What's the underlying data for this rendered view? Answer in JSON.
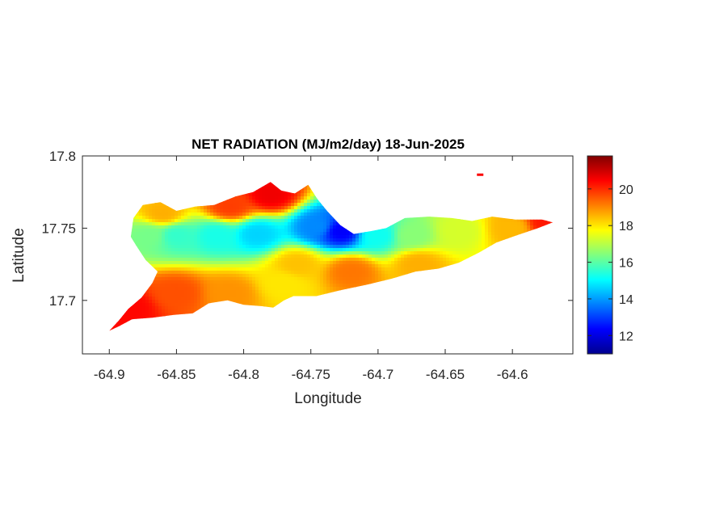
{
  "chart_data": {
    "type": "heatmap",
    "title": "NET RADIATION (MJ/m2/day) 18-Jun-2025",
    "xlabel": "Longitude",
    "ylabel": "Latitude",
    "xlim": [
      -64.92,
      -64.555
    ],
    "ylim": [
      17.663,
      17.8
    ],
    "x_ticks": [
      -64.9,
      -64.85,
      -64.8,
      -64.75,
      -64.7,
      -64.65,
      -64.6
    ],
    "x_tick_labels": [
      "-64.9",
      "-64.85",
      "-64.8",
      "-64.75",
      "-64.7",
      "-64.65",
      "-64.6"
    ],
    "y_ticks": [
      17.7,
      17.75,
      17.8
    ],
    "y_tick_labels": [
      "17.7",
      "17.75",
      "17.8"
    ],
    "colorbar": {
      "colormap": "jet",
      "clim": [
        11,
        21.8
      ],
      "ticks": [
        12,
        14,
        16,
        18,
        20
      ],
      "tick_labels": [
        "12",
        "14",
        "16",
        "18",
        "20"
      ]
    },
    "grid": false,
    "island_outline_lonlat": [
      [
        -64.9,
        17.679
      ],
      [
        -64.893,
        17.686
      ],
      [
        -64.886,
        17.694
      ],
      [
        -64.876,
        17.702
      ],
      [
        -64.868,
        17.712
      ],
      [
        -64.864,
        17.72
      ],
      [
        -64.873,
        17.728
      ],
      [
        -64.88,
        17.738
      ],
      [
        -64.884,
        17.744
      ],
      [
        -64.882,
        17.757
      ],
      [
        -64.875,
        17.766
      ],
      [
        -64.862,
        17.768
      ],
      [
        -64.85,
        17.762
      ],
      [
        -64.836,
        17.765
      ],
      [
        -64.822,
        17.766
      ],
      [
        -64.806,
        17.772
      ],
      [
        -64.793,
        17.775
      ],
      [
        -64.78,
        17.782
      ],
      [
        -64.772,
        17.776
      ],
      [
        -64.762,
        17.774
      ],
      [
        -64.752,
        17.78
      ],
      [
        -64.745,
        17.77
      ],
      [
        -64.738,
        17.762
      ],
      [
        -64.728,
        17.752
      ],
      [
        -64.718,
        17.746
      ],
      [
        -64.705,
        17.748
      ],
      [
        -64.694,
        17.75
      ],
      [
        -64.68,
        17.757
      ],
      [
        -64.662,
        17.758
      ],
      [
        -64.645,
        17.757
      ],
      [
        -64.63,
        17.755
      ],
      [
        -64.615,
        17.758
      ],
      [
        -64.598,
        17.756
      ],
      [
        -64.578,
        17.756
      ],
      [
        -64.57,
        17.754
      ],
      [
        -64.581,
        17.75
      ],
      [
        -64.597,
        17.745
      ],
      [
        -64.612,
        17.74
      ],
      [
        -64.625,
        17.733
      ],
      [
        -64.64,
        17.726
      ],
      [
        -64.655,
        17.722
      ],
      [
        -64.672,
        17.72
      ],
      [
        -64.69,
        17.715
      ],
      [
        -64.708,
        17.711
      ],
      [
        -64.728,
        17.707
      ],
      [
        -64.746,
        17.703
      ],
      [
        -64.763,
        17.703
      ],
      [
        -64.77,
        17.7
      ],
      [
        -64.778,
        17.695
      ],
      [
        -64.786,
        17.696
      ],
      [
        -64.8,
        17.697
      ],
      [
        -64.812,
        17.7
      ],
      [
        -64.826,
        17.698
      ],
      [
        -64.838,
        17.691
      ],
      [
        -64.852,
        17.69
      ],
      [
        -64.868,
        17.688
      ],
      [
        -64.883,
        17.687
      ],
      [
        -64.893,
        17.682
      ],
      [
        -64.9,
        17.679
      ]
    ],
    "series": [
      {
        "name": "",
        "lon": -64.87,
        "lat": 17.745,
        "value": 16.3
      },
      {
        "name": "",
        "lon": -64.85,
        "lat": 17.745,
        "value": 15.6
      },
      {
        "name": "",
        "lon": -64.82,
        "lat": 17.745,
        "value": 15.3
      },
      {
        "name": "",
        "lon": -64.79,
        "lat": 17.746,
        "value": 14.6
      },
      {
        "name": "",
        "lon": -64.745,
        "lat": 17.751,
        "value": 13.8
      },
      {
        "name": "",
        "lon": -64.728,
        "lat": 17.748,
        "value": 12.3
      },
      {
        "name": "",
        "lon": -64.7,
        "lat": 17.745,
        "value": 15.2
      },
      {
        "name": "",
        "lon": -64.675,
        "lat": 17.745,
        "value": 16.5
      },
      {
        "name": "",
        "lon": -64.64,
        "lat": 17.748,
        "value": 17.3
      },
      {
        "name": "",
        "lon": -64.6,
        "lat": 17.75,
        "value": 18.5
      },
      {
        "name": "",
        "lon": -64.575,
        "lat": 17.754,
        "value": 20.2
      },
      {
        "name": "",
        "lon": -64.78,
        "lat": 17.773,
        "value": 20.6
      },
      {
        "name": "",
        "lon": -64.81,
        "lat": 17.765,
        "value": 19.8
      },
      {
        "name": "",
        "lon": -64.86,
        "lat": 17.76,
        "value": 18.6
      },
      {
        "name": "",
        "lon": -64.76,
        "lat": 17.725,
        "value": 18.4
      },
      {
        "name": "",
        "lon": -64.72,
        "lat": 17.72,
        "value": 19.2
      },
      {
        "name": "",
        "lon": -64.67,
        "lat": 17.725,
        "value": 18.6
      },
      {
        "name": "",
        "lon": -64.85,
        "lat": 17.705,
        "value": 19.6
      },
      {
        "name": "",
        "lon": -64.885,
        "lat": 17.695,
        "value": 20.4
      },
      {
        "name": "",
        "lon": -64.81,
        "lat": 17.705,
        "value": 18.9
      },
      {
        "name": "",
        "lon": -64.77,
        "lat": 17.712,
        "value": 18.0
      }
    ],
    "outlier_islet": {
      "lon": -64.624,
      "lat": 17.787,
      "value": 20.5
    }
  }
}
